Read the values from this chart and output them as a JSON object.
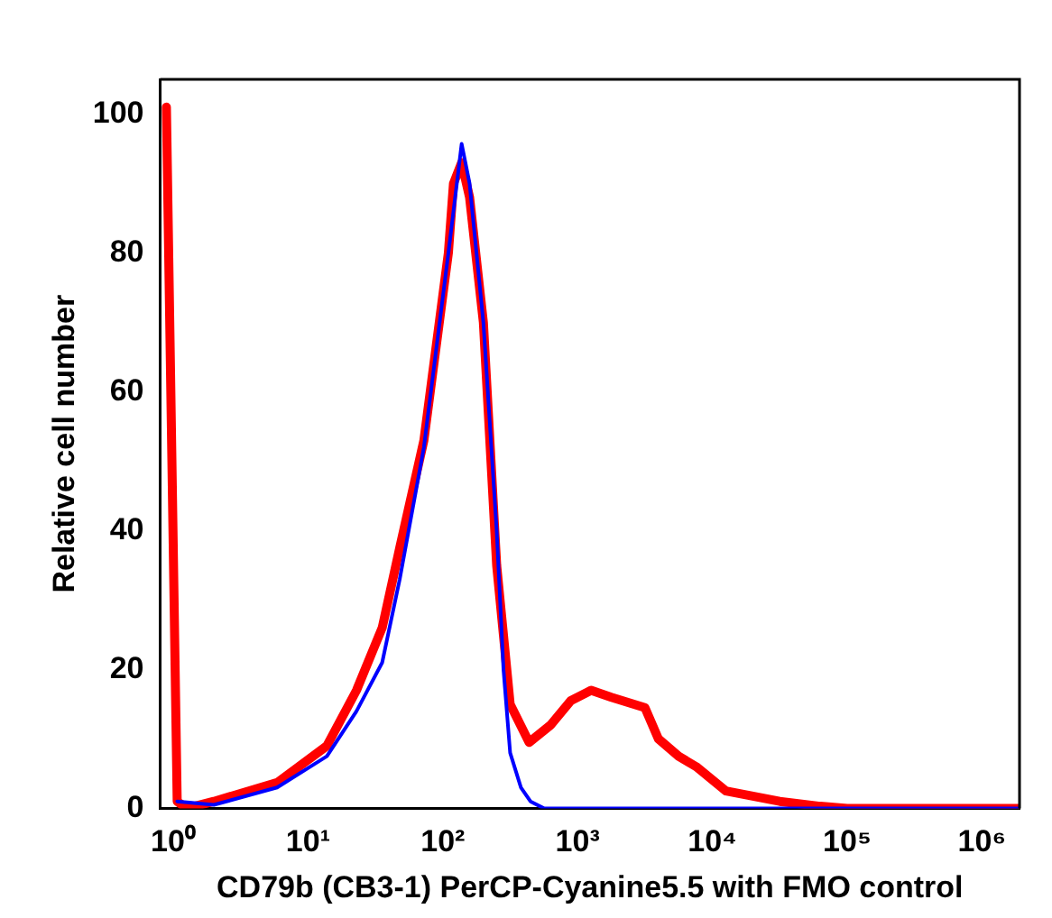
{
  "chart_data": {
    "type": "line",
    "xlabel": "CD79b (CB3-1) PerCP-Cyanine5.5 with FMO control",
    "ylabel": "Relative cell number",
    "log": "x",
    "xlim": [
      0.8,
      1900000
    ],
    "ylim": [
      0,
      105
    ],
    "xticks": [
      {
        "value": 1,
        "label": "10⁰"
      },
      {
        "value": 10,
        "label": "10¹"
      },
      {
        "value": 100,
        "label": "10²"
      },
      {
        "value": 1000,
        "label": "10³"
      },
      {
        "value": 10000,
        "label": "10⁴"
      },
      {
        "value": 100000,
        "label": "10⁵"
      },
      {
        "value": 1000000,
        "label": "10⁶"
      }
    ],
    "yticks": [
      0,
      20,
      40,
      60,
      80,
      100
    ],
    "grid": false,
    "legend": false,
    "marker": "none",
    "line_style": "solid",
    "series": [
      {
        "color": "#ff0000",
        "x": [
          0.89,
          1.07,
          1.26,
          2,
          5.9,
          13.8,
          22.9,
          35.5,
          47.9,
          72.4,
          110,
          120,
          138,
          158,
          200,
          251,
          316,
          437,
          631,
          891,
          1260,
          1780,
          3160,
          3980,
          5620,
          7590,
          12600,
          31600,
          63100,
          100000,
          1860000
        ],
        "values": [
          101,
          1,
          0,
          1,
          3.7,
          9,
          17,
          26,
          37.5,
          53,
          80,
          90,
          93,
          88,
          70,
          35,
          15,
          9.5,
          12,
          15.5,
          17,
          16,
          14.5,
          10,
          7.5,
          6,
          2.5,
          1,
          0.3,
          0,
          0
        ]
      },
      {
        "color": "#0000ff",
        "x": [
          1.07,
          2,
          5.9,
          13.8,
          22.9,
          35.5,
          47.9,
          72.4,
          110,
          138,
          158,
          200,
          251,
          282,
          316,
          380,
          447,
          562,
          1860000
        ],
        "values": [
          1,
          0.5,
          3,
          7.5,
          14,
          21,
          33,
          52,
          80,
          95.7,
          90,
          70,
          40,
          20,
          8,
          3,
          1,
          0,
          0
        ]
      }
    ]
  }
}
